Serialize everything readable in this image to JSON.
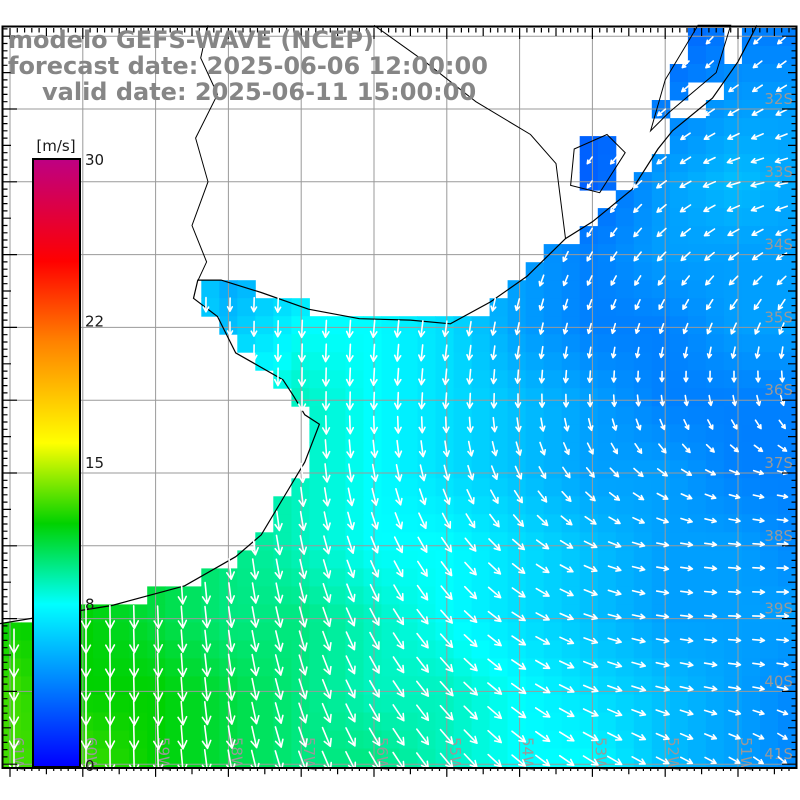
{
  "title": {
    "line1": "modelo GEFS-WAVE (NCEP)",
    "line2": "forecast date: 2025-06-06 12:00:00",
    "line3": "valid date: 2025-06-11 15:00:00"
  },
  "colorbar": {
    "unit": "[m/s]",
    "vmin": 0,
    "vmax": 30,
    "tick_values": [
      30,
      22,
      15,
      8,
      0
    ],
    "stops": [
      {
        "v": 0,
        "color": "#0000ff"
      },
      {
        "v": 8,
        "color": "#00ffff"
      },
      {
        "v": 12,
        "color": "#00d200"
      },
      {
        "v": 16,
        "color": "#ffff00"
      },
      {
        "v": 21,
        "color": "#ff8200"
      },
      {
        "v": 25,
        "color": "#ff0000"
      },
      {
        "v": 30,
        "color": "#be0082"
      }
    ]
  },
  "axes": {
    "lat_labels": [
      {
        "lat": -32,
        "text": "32S"
      },
      {
        "lat": -33,
        "text": "33S"
      },
      {
        "lat": -34,
        "text": "34S"
      },
      {
        "lat": -35,
        "text": "35S"
      },
      {
        "lat": -36,
        "text": "36S"
      },
      {
        "lat": -37,
        "text": "37S"
      },
      {
        "lat": -38,
        "text": "38S"
      },
      {
        "lat": -39,
        "text": "39S"
      },
      {
        "lat": -40,
        "text": "40S"
      },
      {
        "lat": -41,
        "text": "41S"
      }
    ],
    "lon_labels": [
      {
        "lon": -61,
        "text": "61W"
      },
      {
        "lon": -60,
        "text": "60W"
      },
      {
        "lon": -59,
        "text": "59W"
      },
      {
        "lon": -58,
        "text": "58W"
      },
      {
        "lon": -57,
        "text": "57W"
      },
      {
        "lon": -56,
        "text": "56W"
      },
      {
        "lon": -55,
        "text": "55W"
      },
      {
        "lon": -54,
        "text": "54W"
      },
      {
        "lon": -53,
        "text": "53W"
      },
      {
        "lon": -52,
        "text": "52W"
      },
      {
        "lon": -51,
        "text": "51W"
      }
    ],
    "grid_lats": [
      -31,
      -32,
      -33,
      -34,
      -35,
      -36,
      -37,
      -38,
      -39,
      -40,
      -41
    ],
    "grid_lons": [
      -61,
      -60,
      -59,
      -58,
      -57,
      -56,
      -55,
      -54,
      -53,
      -52,
      -51
    ],
    "grid_color": "#9a9a9a",
    "label_color": "#999999"
  },
  "field": {
    "type": "heatmap",
    "units": "m/s",
    "arrow_color": "#ffffff",
    "lats": [
      -31,
      -32,
      -33,
      -34,
      -35,
      -36,
      -37,
      -38,
      -39,
      -40,
      -41
    ],
    "lons": [
      -61,
      -60,
      -59,
      -58,
      -57,
      -56,
      -55,
      -54,
      -53,
      -52,
      -51,
      -50
    ],
    "speed": [
      [
        10,
        10,
        10,
        9,
        8,
        7,
        6,
        5,
        4,
        3,
        4,
        4
      ],
      [
        10,
        10,
        9,
        8,
        8,
        7,
        6,
        4,
        3,
        4,
        5,
        5
      ],
      [
        10,
        10,
        9,
        8,
        7,
        7,
        6,
        4,
        3,
        5,
        6,
        5
      ],
      [
        9,
        9,
        8,
        5,
        6,
        7,
        6,
        5,
        4,
        5,
        5,
        5
      ],
      [
        9,
        9,
        8,
        6,
        8,
        8,
        7,
        5,
        4,
        4,
        5,
        5
      ],
      [
        10,
        10,
        9,
        8,
        9,
        8,
        7,
        6,
        5,
        4,
        4,
        4
      ],
      [
        11,
        11,
        10,
        10,
        9,
        8,
        7,
        6,
        5,
        5,
        4,
        4
      ],
      [
        12,
        11,
        11,
        10,
        9,
        8,
        8,
        7,
        6,
        5,
        5,
        4
      ],
      [
        12,
        12,
        11,
        10,
        10,
        9,
        8,
        7,
        6,
        5,
        5,
        5
      ],
      [
        13,
        12,
        12,
        11,
        10,
        9,
        9,
        8,
        7,
        6,
        5,
        4
      ],
      [
        13,
        13,
        12,
        11,
        10,
        10,
        9,
        8,
        8,
        6,
        5,
        4
      ]
    ],
    "dir_deg_toward": [
      [
        180,
        180,
        180,
        180,
        185,
        190,
        200,
        210,
        215,
        220,
        225,
        230
      ],
      [
        180,
        180,
        180,
        180,
        185,
        190,
        200,
        210,
        220,
        230,
        240,
        245
      ],
      [
        180,
        180,
        180,
        182,
        185,
        190,
        195,
        205,
        215,
        235,
        255,
        260
      ],
      [
        180,
        180,
        180,
        182,
        185,
        188,
        192,
        200,
        210,
        225,
        235,
        240
      ],
      [
        180,
        180,
        180,
        180,
        182,
        185,
        188,
        192,
        196,
        200,
        205,
        200
      ],
      [
        180,
        180,
        180,
        180,
        180,
        182,
        184,
        180,
        178,
        172,
        168,
        160
      ],
      [
        180,
        180,
        180,
        178,
        175,
        170,
        165,
        155,
        140,
        125,
        110,
        100
      ],
      [
        180,
        180,
        178,
        175,
        168,
        158,
        145,
        130,
        115,
        100,
        95,
        90
      ],
      [
        180,
        180,
        178,
        172,
        165,
        152,
        138,
        122,
        108,
        98,
        92,
        90
      ],
      [
        180,
        180,
        178,
        172,
        162,
        150,
        138,
        125,
        112,
        105,
        100,
        105
      ],
      [
        180,
        180,
        178,
        170,
        160,
        150,
        140,
        130,
        122,
        118,
        120,
        140
      ]
    ]
  },
  "geo": {
    "land": [
      [
        -50.74,
        -30.85
      ],
      [
        -51.0,
        -31.35
      ],
      [
        -51.35,
        -31.85
      ],
      [
        -51.9,
        -32.3
      ],
      [
        -52.1,
        -32.55
      ],
      [
        -52.45,
        -33.1
      ],
      [
        -53.0,
        -33.55
      ],
      [
        -53.37,
        -33.78
      ],
      [
        -53.9,
        -34.3
      ],
      [
        -54.4,
        -34.65
      ],
      [
        -54.95,
        -34.95
      ],
      [
        -55.5,
        -34.9
      ],
      [
        -56.2,
        -34.88
      ],
      [
        -56.9,
        -34.75
      ],
      [
        -57.55,
        -34.52
      ],
      [
        -58.1,
        -34.35
      ],
      [
        -58.42,
        -34.35
      ],
      [
        -58.48,
        -34.6
      ],
      [
        -58.15,
        -34.85
      ],
      [
        -57.9,
        -35.35
      ],
      [
        -57.25,
        -35.72
      ],
      [
        -57.1,
        -35.95
      ],
      [
        -56.95,
        -36.2
      ],
      [
        -56.75,
        -36.33
      ],
      [
        -56.95,
        -36.85
      ],
      [
        -57.25,
        -37.35
      ],
      [
        -57.55,
        -37.85
      ],
      [
        -57.9,
        -38.15
      ],
      [
        -58.6,
        -38.55
      ],
      [
        -59.6,
        -38.82
      ],
      [
        -60.6,
        -38.98
      ],
      [
        -61.2,
        -39.08
      ],
      [
        -61.2,
        -30.85
      ]
    ],
    "lagoons": [
      [
        [
          -51.55,
          -30.85
        ],
        [
          -51.1,
          -30.85
        ],
        [
          -51.3,
          -31.5
        ],
        [
          -51.95,
          -32.05
        ],
        [
          -52.2,
          -32.3
        ],
        [
          -52.0,
          -31.6
        ]
      ],
      [
        [
          -53.25,
          -32.55
        ],
        [
          -52.8,
          -32.35
        ],
        [
          -52.55,
          -32.6
        ],
        [
          -52.9,
          -33.15
        ],
        [
          -53.3,
          -33.05
        ]
      ]
    ],
    "rivers": [
      [
        [
          -58.28,
          -30.85
        ],
        [
          -58.38,
          -31.3
        ],
        [
          -58.15,
          -31.8
        ],
        [
          -58.45,
          -32.4
        ],
        [
          -58.28,
          -33.0
        ],
        [
          -58.5,
          -33.6
        ],
        [
          -58.3,
          -34.1
        ],
        [
          -58.42,
          -34.36
        ]
      ]
    ],
    "borders": [
      [
        [
          -56.0,
          -30.85
        ],
        [
          -55.3,
          -31.35
        ],
        [
          -54.6,
          -31.9
        ],
        [
          -53.85,
          -32.35
        ],
        [
          -53.5,
          -32.75
        ],
        [
          -53.37,
          -33.78
        ]
      ]
    ]
  }
}
